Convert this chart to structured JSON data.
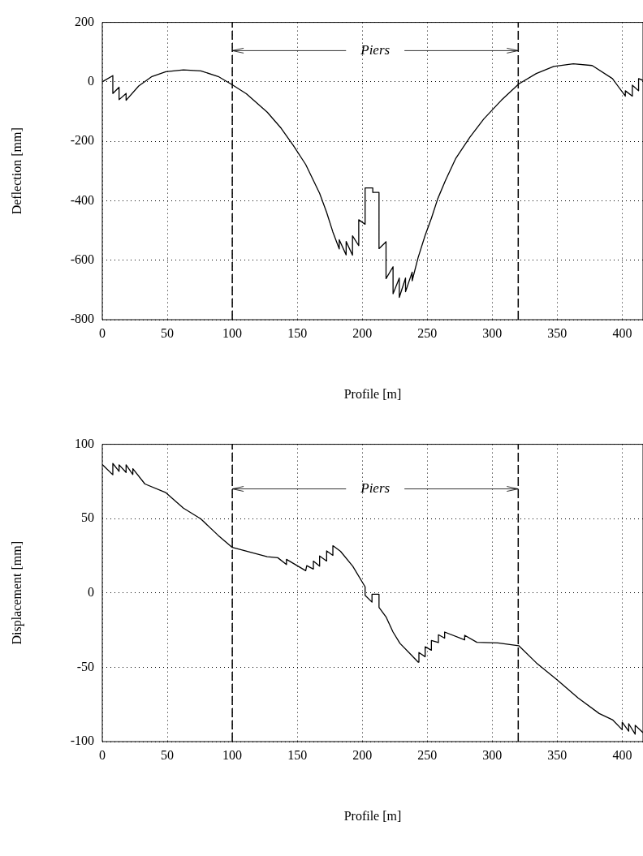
{
  "chart_data": [
    {
      "type": "line",
      "xlabel": "Profile [m]",
      "ylabel": "Deflection [mm]",
      "xlim": [
        0,
        416
      ],
      "ylim": [
        -800,
        200
      ],
      "xticks": [
        0,
        50,
        100,
        150,
        200,
        250,
        300,
        350,
        400
      ],
      "yticks": [
        -800,
        -600,
        -400,
        -200,
        0,
        200
      ],
      "grid": true,
      "marker": "none",
      "line_style": "solid",
      "x": [
        0,
        8.1,
        8.1,
        12.9,
        12.9,
        18.3,
        18.3,
        28,
        38.2,
        48.9,
        62.4,
        75.8,
        89.2,
        100,
        110.8,
        126.9,
        137.6,
        147,
        156.5,
        167.2,
        172.6,
        177.4,
        182.3,
        182.3,
        187.6,
        187.6,
        192.5,
        192.5,
        197.3,
        197.3,
        202.2,
        202.2,
        208.1,
        208.1,
        212.9,
        212.9,
        218.3,
        218.3,
        223.7,
        223.7,
        228.5,
        228.5,
        233.3,
        233.3,
        238.4,
        238.4,
        243,
        248.4,
        253.2,
        258.1,
        264,
        272,
        282.8,
        293.5,
        307,
        320.4,
        333.9,
        347.3,
        362.4,
        376.9,
        392.5,
        402.4,
        402.4,
        407.8,
        407.8,
        412.6,
        412.6,
        416
      ],
      "series": [
        {
          "color": "#000000",
          "values": [
            0,
            21,
            -39,
            -18,
            -60,
            -39,
            -62,
            -14,
            18,
            34,
            40,
            37,
            18,
            -10,
            -40,
            -102,
            -156,
            -214,
            -278,
            -375,
            -439,
            -505,
            -562,
            -531,
            -582,
            -537,
            -583,
            -518,
            -551,
            -464,
            -479,
            -357,
            -357,
            -372,
            -372,
            -561,
            -538,
            -662,
            -622,
            -713,
            -660,
            -725,
            -660,
            -706,
            -640,
            -669,
            -591,
            -516,
            -459,
            -393,
            -332,
            -257,
            -186,
            -125,
            -62,
            -7,
            28,
            52,
            61,
            55,
            11,
            -48,
            -30,
            -48,
            -11,
            -30,
            11,
            5
          ]
        }
      ],
      "ref_lines": [
        {
          "axis": "x",
          "value": 100,
          "line_style": "dashed"
        },
        {
          "axis": "x",
          "value": 320,
          "line_style": "dashed"
        }
      ],
      "annotations": [
        {
          "text": "Piers",
          "x": 100,
          "y": 105
        }
      ]
    },
    {
      "type": "line",
      "xlabel": "Profile [m]",
      "ylabel": "Displacement [mm]",
      "xlim": [
        0,
        416
      ],
      "ylim": [
        -100,
        100
      ],
      "xticks": [
        0,
        50,
        100,
        150,
        200,
        250,
        300,
        350,
        400
      ],
      "yticks": [
        -100,
        -50,
        0,
        50,
        100
      ],
      "grid": true,
      "marker": "none",
      "line_style": "solid",
      "x": [
        0,
        8.1,
        8.1,
        12.9,
        12.9,
        18.3,
        18.3,
        23.5,
        23.5,
        32.8,
        48.9,
        62.4,
        75.8,
        89.2,
        100,
        126.9,
        135,
        141.7,
        141.7,
        156.5,
        157.3,
        162.4,
        162.4,
        167.2,
        167.2,
        172.6,
        172.6,
        177.4,
        177.4,
        183.3,
        192.7,
        202.2,
        202.2,
        207.5,
        207.5,
        212.9,
        212.9,
        218.3,
        223.7,
        229,
        243,
        243.6,
        248.4,
        248.4,
        253.2,
        253.2,
        258.6,
        258.6,
        263.4,
        263.4,
        278.8,
        278.8,
        288.2,
        304.3,
        320.4,
        333.9,
        350,
        366.1,
        382.3,
        392.5,
        400,
        400,
        405,
        405,
        410,
        410,
        416
      ],
      "series": [
        {
          "color": "#000000",
          "values": [
            86.4,
            79.5,
            87.1,
            81.8,
            86.2,
            81.1,
            86.2,
            79.7,
            83.6,
            73.3,
            67.5,
            57.1,
            49.8,
            38.7,
            30.6,
            24.4,
            23.7,
            19.1,
            22.6,
            15,
            18.4,
            16.1,
            21.4,
            18,
            24.9,
            21.5,
            28.3,
            25.3,
            31.8,
            28,
            18,
            4.1,
            -1.6,
            -6.2,
            -0.9,
            -0.9,
            -9.7,
            -16.1,
            -26.3,
            -33.9,
            -46.5,
            -40.1,
            -42.9,
            -36.2,
            -38.5,
            -32,
            -33.4,
            -28.1,
            -30.4,
            -26.3,
            -31.6,
            -28.5,
            -33.2,
            -33.6,
            -35.5,
            -47,
            -58.5,
            -70.7,
            -81.1,
            -85.3,
            -92,
            -87,
            -93,
            -88,
            -95,
            -89,
            -94
          ]
        }
      ],
      "ref_lines": [
        {
          "axis": "x",
          "value": 100,
          "line_style": "dashed"
        },
        {
          "axis": "x",
          "value": 320,
          "line_style": "dashed"
        }
      ],
      "annotations": [
        {
          "text": "Piers",
          "x": 100,
          "y": 70
        }
      ]
    }
  ]
}
